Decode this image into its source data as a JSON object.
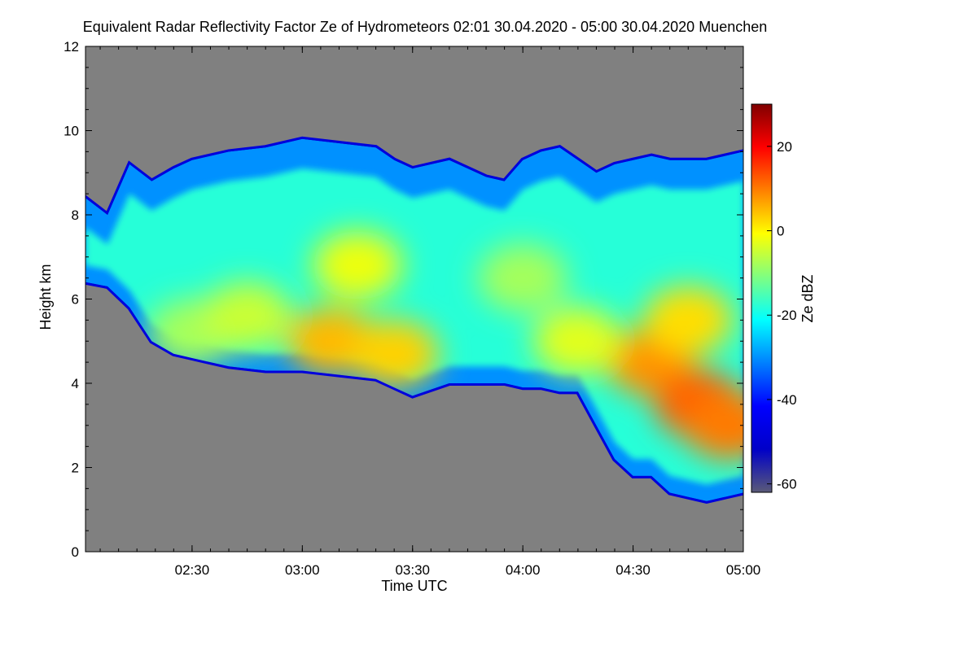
{
  "chart_data": {
    "type": "heatmap",
    "title": "Equivalent Radar Reflectivity Factor Ze of Hydrometeors   02:01 30.04.2020 - 05:00 30.04.2020 Muenchen",
    "xlabel": "Time UTC",
    "ylabel": "Height km",
    "x_range_minutes_utc": [
      121,
      300
    ],
    "x_ticks": [
      {
        "minutes": 150,
        "label": "02:30"
      },
      {
        "minutes": 180,
        "label": "03:00"
      },
      {
        "minutes": 210,
        "label": "03:30"
      },
      {
        "minutes": 240,
        "label": "04:00"
      },
      {
        "minutes": 270,
        "label": "04:30"
      },
      {
        "minutes": 300,
        "label": "05:00"
      }
    ],
    "ylim": [
      0,
      12
    ],
    "y_ticks": [
      {
        "value": 0,
        "label": "0"
      },
      {
        "value": 2,
        "label": "2"
      },
      {
        "value": 4,
        "label": "4"
      },
      {
        "value": 6,
        "label": "6"
      },
      {
        "value": 8,
        "label": "8"
      },
      {
        "value": 10,
        "label": "10"
      },
      {
        "value": 12,
        "label": "12"
      }
    ],
    "colorbar": {
      "label": "Ze dBZ",
      "range": [
        -62,
        30
      ],
      "ticks": [
        {
          "value": 20,
          "label": "20"
        },
        {
          "value": 0,
          "label": "0"
        },
        {
          "value": -20,
          "label": "-20"
        },
        {
          "value": -40,
          "label": "-40"
        },
        {
          "value": -60,
          "label": "-60"
        }
      ],
      "colors": [
        "#5a5a78",
        "#0000c8",
        "#0000ff",
        "#0080ff",
        "#00ffff",
        "#80ff80",
        "#ffff00",
        "#ff8000",
        "#ff0000",
        "#800000"
      ]
    },
    "no_data_color": "#808080",
    "cloud_boundary": {
      "time_min": [
        121,
        127,
        133,
        139,
        145,
        150,
        160,
        170,
        180,
        190,
        200,
        205,
        210,
        220,
        230,
        235,
        240,
        245,
        250,
        255,
        260,
        265,
        270,
        275,
        280,
        285,
        290,
        295,
        300
      ],
      "top_km": [
        8.4,
        8.0,
        9.2,
        8.8,
        9.1,
        9.3,
        9.5,
        9.6,
        9.8,
        9.7,
        9.6,
        9.3,
        9.1,
        9.3,
        8.9,
        8.8,
        9.3,
        9.5,
        9.6,
        9.3,
        9.0,
        9.2,
        9.3,
        9.4,
        9.3,
        9.3,
        9.3,
        9.4,
        9.5
      ],
      "base_km": [
        6.4,
        6.3,
        5.8,
        5.0,
        4.7,
        4.6,
        4.4,
        4.3,
        4.3,
        4.2,
        4.1,
        3.9,
        3.7,
        4.0,
        4.0,
        4.0,
        3.9,
        3.9,
        3.8,
        3.8,
        3.0,
        2.2,
        1.8,
        1.8,
        1.4,
        1.3,
        1.2,
        1.3,
        1.4
      ]
    },
    "intensity_cores": [
      {
        "time_min": 188,
        "height_km": 5.0,
        "ze_dbz": 5
      },
      {
        "time_min": 205,
        "height_km": 4.7,
        "ze_dbz": 3
      },
      {
        "time_min": 195,
        "height_km": 6.8,
        "ze_dbz": -2
      },
      {
        "time_min": 275,
        "height_km": 4.5,
        "ze_dbz": 8
      },
      {
        "time_min": 288,
        "height_km": 3.5,
        "ze_dbz": 12
      },
      {
        "time_min": 296,
        "height_km": 3.0,
        "ze_dbz": 10
      },
      {
        "time_min": 285,
        "height_km": 5.5,
        "ze_dbz": 2
      },
      {
        "time_min": 150,
        "height_km": 5.2,
        "ze_dbz": -8
      },
      {
        "time_min": 165,
        "height_km": 5.6,
        "ze_dbz": -5
      },
      {
        "time_min": 240,
        "height_km": 6.5,
        "ze_dbz": -8
      },
      {
        "time_min": 255,
        "height_km": 5.0,
        "ze_dbz": -3
      }
    ]
  }
}
